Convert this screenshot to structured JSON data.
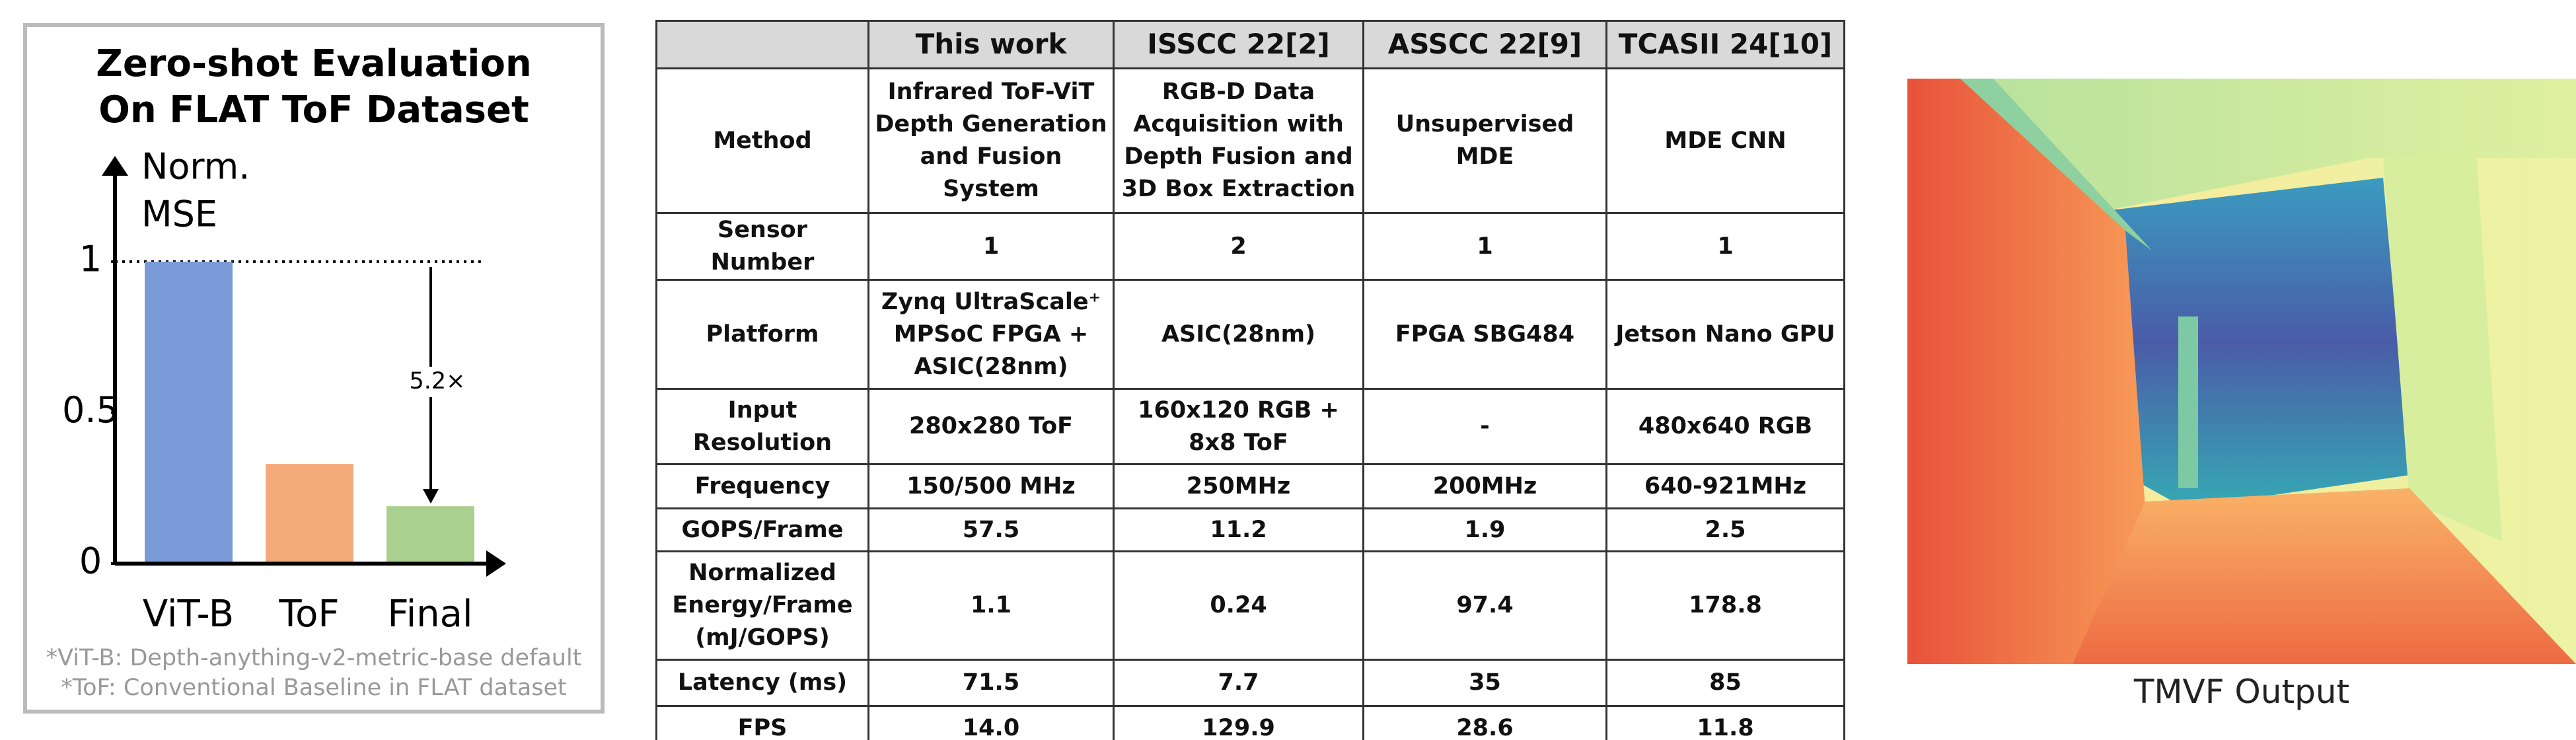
{
  "chart_data": {
    "type": "bar",
    "title": [
      "Zero-shot Evaluation",
      "On FLAT ToF Dataset"
    ],
    "ylabel_lines": [
      "Norm.",
      "MSE"
    ],
    "categories": [
      "ViT-B",
      "ToF",
      "Final"
    ],
    "values": [
      1,
      0.33,
      0.19
    ],
    "colors": [
      "#7b9bd8",
      "#f4a97b",
      "#a9d08e"
    ],
    "ylim": [
      0,
      1.35
    ],
    "yticks": [
      0,
      0.5,
      1
    ],
    "reference_line": 1,
    "annotation": "5.2×",
    "footnotes": [
      "*ViT-B: Depth-anything-v2-metric-base default",
      "*ToF: Conventional Baseline in FLAT dataset"
    ]
  },
  "table": {
    "header": [
      "This work",
      "ISSCC 22[2]",
      "ASSCC 22[9]",
      "TCASII 24[10]"
    ],
    "rows": [
      [
        "Method",
        "Infrared ToF-ViT Depth Generation and Fusion System",
        "RGB-D Data Acquisition with Depth Fusion and 3D Box Extraction",
        "Unsupervised MDE",
        "MDE CNN"
      ],
      [
        "Sensor Number",
        "1",
        "2",
        "1",
        "1"
      ],
      [
        "Platform",
        "Zynq UltraScale⁺ MPSoC FPGA + ASIC(28nm)",
        "ASIC(28nm)",
        "FPGA SBG484",
        "Jetson Nano GPU"
      ],
      [
        "Input Resolution",
        "280x280 ToF",
        "160x120 RGB + 8x8 ToF",
        "-",
        "480x640 RGB"
      ],
      [
        "Frequency",
        "150/500 MHz",
        "250MHz",
        "200MHz",
        "640-921MHz"
      ],
      [
        "GOPS/Frame",
        "57.5",
        "11.2",
        "1.9",
        "2.5"
      ],
      [
        "Normalized Energy/Frame (mJ/GOPS)",
        "1.1",
        "0.24",
        "97.4",
        "178.8"
      ],
      [
        "Latency (ms)",
        "71.5",
        "7.7",
        "35",
        "85"
      ],
      [
        "FPS",
        "14.0",
        "129.9",
        "28.6",
        "11.8"
      ]
    ]
  },
  "image_caption": "TMVF Output"
}
